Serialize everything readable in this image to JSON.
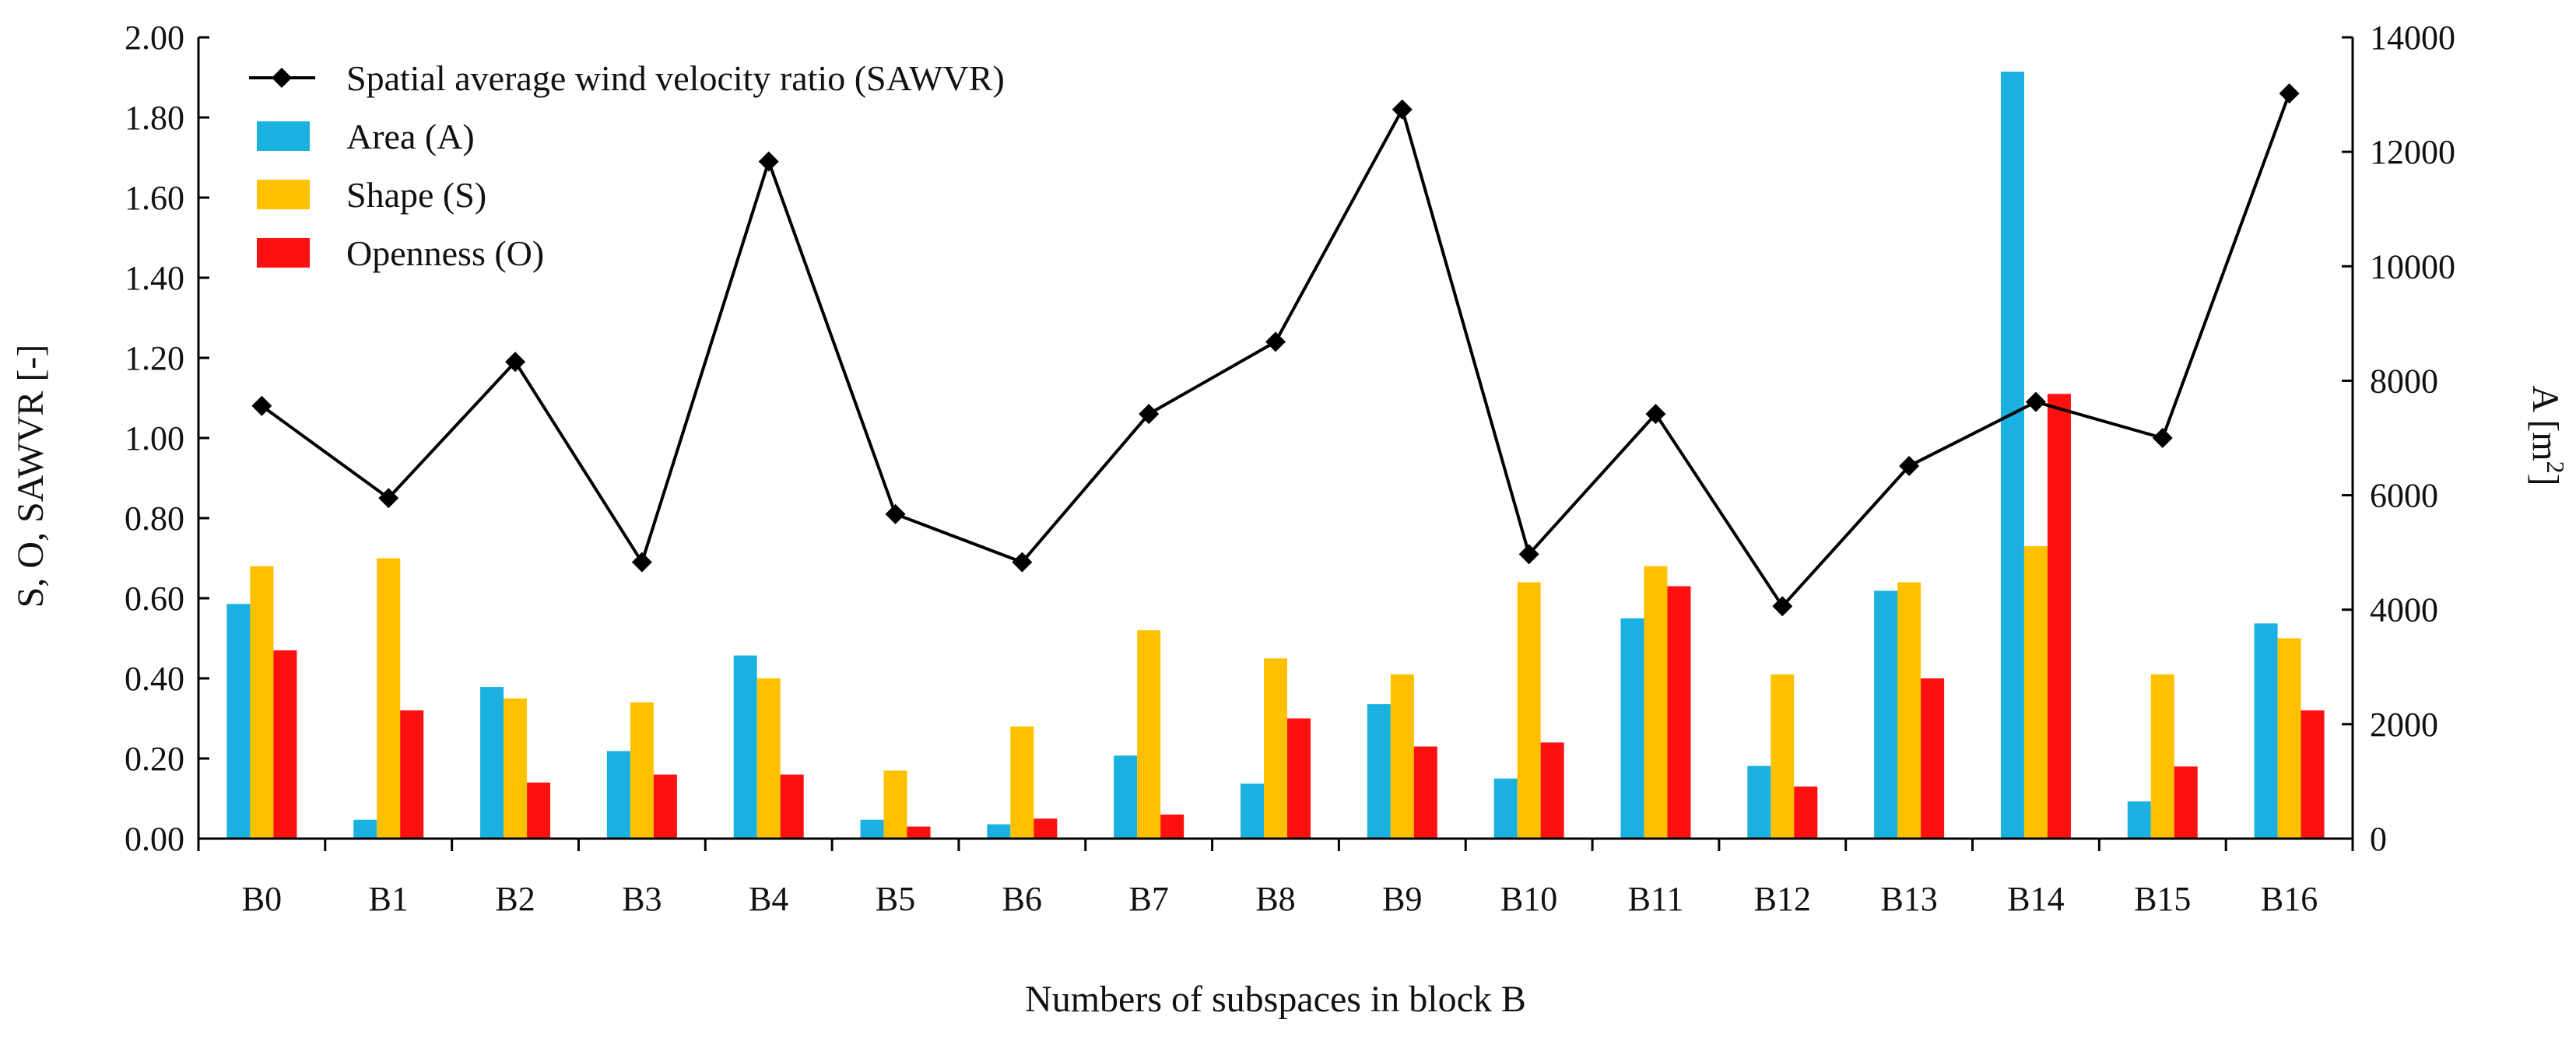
{
  "chart_data": {
    "type": "bar",
    "xlabel": "Numbers of subspaces in block B",
    "ylabel_left": "S, O, SAWVR [-]",
    "ylabel_right_prefix": "A [m",
    "ylabel_right_sup": "2",
    "ylabel_right_suffix": "]",
    "ylim_left": [
      0,
      2.0
    ],
    "ylim_right": [
      0,
      14000
    ],
    "left_ticks": [
      "0.00",
      "0.20",
      "0.40",
      "0.60",
      "0.80",
      "1.00",
      "1.20",
      "1.40",
      "1.60",
      "1.80",
      "2.00"
    ],
    "right_ticks": [
      "0",
      "2000",
      "4000",
      "6000",
      "8000",
      "10000",
      "12000",
      "14000"
    ],
    "categories": [
      "B0",
      "B1",
      "B2",
      "B3",
      "B4",
      "B5",
      "B6",
      "B7",
      "B8",
      "B9",
      "B10",
      "B11",
      "B12",
      "B13",
      "B14",
      "B15",
      "B16"
    ],
    "series": [
      {
        "name": "Area (A)",
        "kind": "bar",
        "axis": "right",
        "color": "#1AB0E0",
        "values": [
          4100,
          330,
          2650,
          1530,
          3200,
          330,
          250,
          1450,
          960,
          2350,
          1050,
          3850,
          1270,
          4330,
          13400,
          650,
          3760
        ]
      },
      {
        "name": "Shape (S)",
        "kind": "bar",
        "axis": "left",
        "color": "#FFC000",
        "values": [
          0.68,
          0.7,
          0.35,
          0.34,
          0.4,
          0.17,
          0.28,
          0.52,
          0.45,
          0.41,
          0.64,
          0.68,
          0.41,
          0.64,
          0.73,
          0.41,
          0.5
        ]
      },
      {
        "name": "Openness (O)",
        "kind": "bar",
        "axis": "left",
        "color": "#FF1010",
        "values": [
          0.47,
          0.32,
          0.14,
          0.16,
          0.16,
          0.03,
          0.05,
          0.06,
          0.3,
          0.23,
          0.24,
          0.63,
          0.13,
          0.4,
          1.11,
          0.18,
          0.32
        ]
      },
      {
        "name": "Spatial average wind velocity ratio (SAWVR)",
        "kind": "line",
        "axis": "left",
        "color": "#000000",
        "values": [
          1.08,
          0.85,
          1.19,
          0.69,
          1.69,
          0.81,
          0.69,
          1.06,
          1.24,
          1.82,
          0.71,
          1.06,
          0.58,
          0.93,
          1.09,
          1.0,
          1.86
        ]
      }
    ],
    "legend_order": [
      "Spatial average wind velocity ratio (SAWVR)",
      "Area (A)",
      "Shape (S)",
      "Openness (O)"
    ],
    "legend_position": "top-left"
  }
}
